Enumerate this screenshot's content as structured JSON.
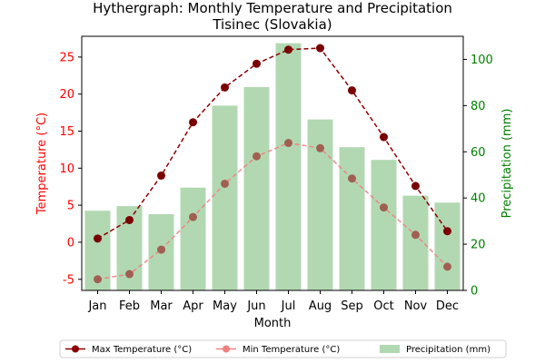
{
  "chart_data": {
    "type": "bar+line",
    "title_line1": "Hythergraph: Monthly Temperature and Precipitation",
    "title_line2": "Tisinec (Slovakia)",
    "xlabel": "Month",
    "ylabel_left": "Temperature (°C)",
    "ylabel_right": "Precipitation (mm)",
    "categories": [
      "Jan",
      "Feb",
      "Mar",
      "Apr",
      "May",
      "Jun",
      "Jul",
      "Aug",
      "Sep",
      "Oct",
      "Nov",
      "Dec"
    ],
    "ylim_left": [
      -6.5,
      27.8
    ],
    "ylim_right": [
      0,
      110
    ],
    "yticks_left": [
      -5,
      0,
      5,
      10,
      15,
      20,
      25
    ],
    "yticks_right": [
      0,
      20,
      40,
      60,
      80,
      100
    ],
    "series": [
      {
        "name": "Max Temperature (°C)",
        "axis": "left",
        "kind": "line",
        "color": "#8b0000",
        "values": [
          0.5,
          3.0,
          9.0,
          16.2,
          20.9,
          24.1,
          26.0,
          26.2,
          20.5,
          14.2,
          7.6,
          1.5
        ]
      },
      {
        "name": "Min Temperature (°C)",
        "axis": "left",
        "kind": "line",
        "color": "#f08080",
        "values": [
          -5.0,
          -4.3,
          -1.0,
          3.4,
          7.9,
          11.6,
          13.4,
          12.7,
          8.6,
          4.7,
          1.0,
          -3.3
        ]
      },
      {
        "name": "Precipitation (mm)",
        "axis": "right",
        "kind": "bar",
        "color": "#b2d8b2",
        "values": [
          34.5,
          36.5,
          33.0,
          44.5,
          80.0,
          88.0,
          107.0,
          74.0,
          62.0,
          56.5,
          41.0,
          38.0
        ]
      }
    ],
    "legend_position": "bottom-center",
    "grid": false
  },
  "colors": {
    "left_axis": "#ff0000",
    "right_axis": "#008000",
    "max_marker": "#7a0000",
    "min_marker": "#a06050"
  }
}
